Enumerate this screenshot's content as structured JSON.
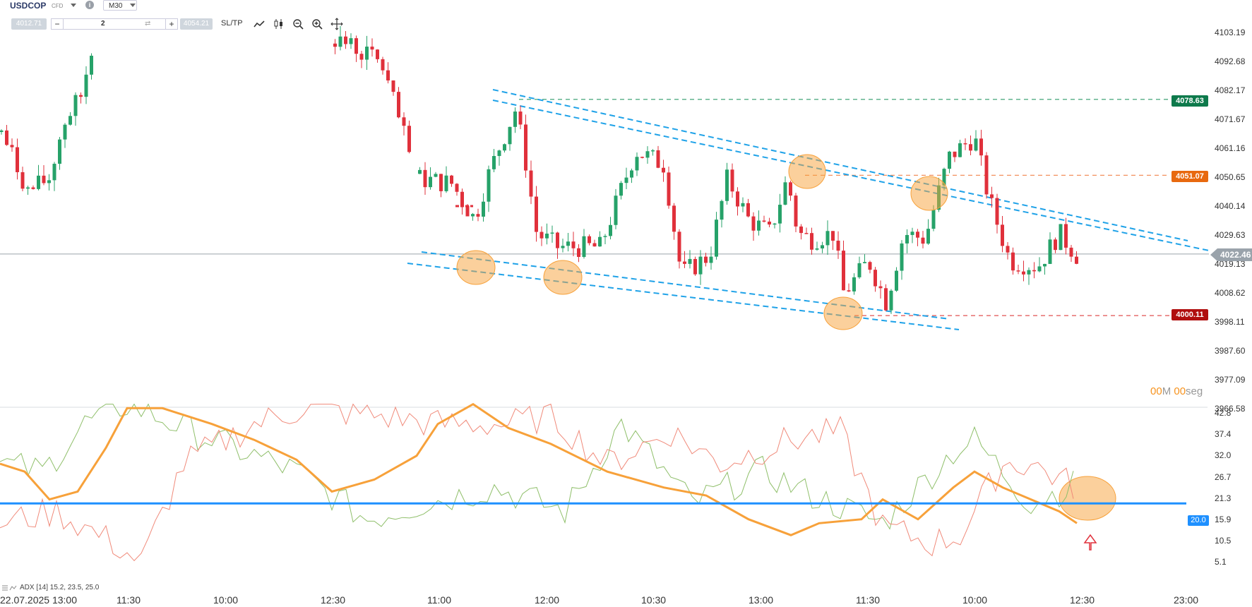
{
  "toolbar": {
    "symbol": "USDCOP",
    "symbol_type": "CFD",
    "timeframe": "M30",
    "bid": "4012.71",
    "ask": "4054.21",
    "quantity": "2",
    "sltp_label": "SL/TP",
    "minus": "−",
    "plus": "+",
    "swap": "⇄"
  },
  "icons": [
    "line-chart-icon",
    "candles-icon",
    "zoom-out-icon",
    "zoom-in-icon",
    "crosshair-icon"
  ],
  "price_axis": {
    "labels": [
      "4103.19",
      "4092.68",
      "4082.17",
      "4071.67",
      "4061.16",
      "4050.65",
      "4040.14",
      "4029.63",
      "4019.13",
      "4008.62",
      "3998.11",
      "3987.60",
      "3977.09",
      "3966.58"
    ],
    "current_price": "4022.46"
  },
  "price_tags": [
    {
      "value": "4078.63",
      "color": "#0e7a4c"
    },
    {
      "value": "4051.07",
      "color": "#e8690f"
    },
    {
      "value": "4000.11",
      "color": "#b00e0e"
    }
  ],
  "timer": {
    "minutes": "00",
    "minutes_unit": "M",
    "seconds": "00",
    "seconds_unit": "seg"
  },
  "indicator": {
    "label": "ADX [14] 15.2, 23.5, 25.0",
    "axis_labels": [
      "42.8",
      "37.4",
      "32.0",
      "26.7",
      "21.3",
      "15.9",
      "10.5",
      "5.1"
    ],
    "level": "20.0"
  },
  "time_axis": [
    "22.07.2025 13:00",
    "11:30",
    "10:00",
    "12:30",
    "11:00",
    "12:00",
    "10:30",
    "13:00",
    "11:30",
    "10:00",
    "12:30",
    "23:00"
  ],
  "colors": {
    "bull": "#26a269",
    "bear": "#e0303b",
    "trend_line": "#1fa2e8",
    "adx": "#f7a13a",
    "di_plus": "#8fbf6a",
    "di_minus": "#f08a7a",
    "level": "#1e90ff"
  }
}
